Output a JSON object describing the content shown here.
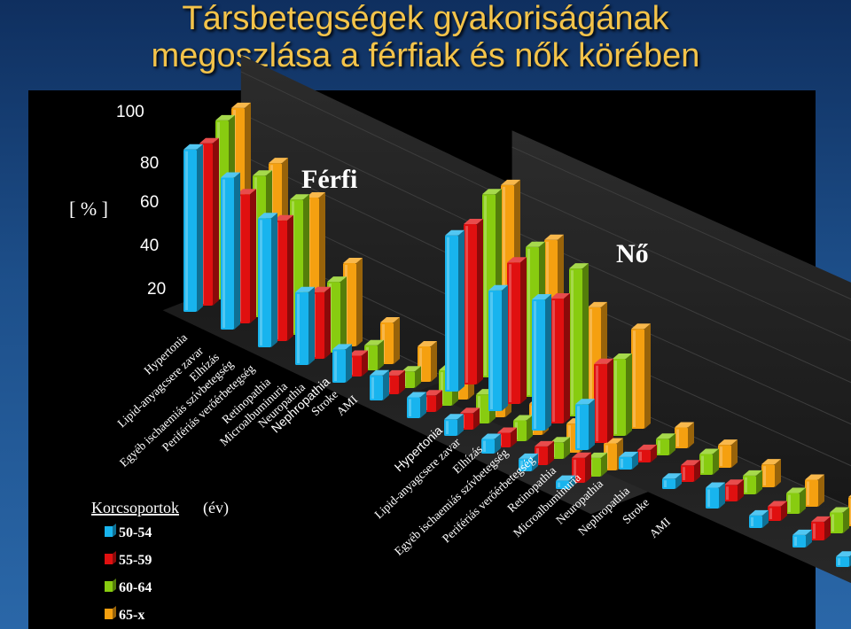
{
  "slide": {
    "title_line1": "Társbetegségek gyakoriságának",
    "title_line2": "megoszlása a férfiak és nők körében"
  },
  "chart_data": {
    "type": "bar",
    "style": "3d-grouped",
    "y_unit_label": "[ % ]",
    "y_ticks": [
      "100",
      "80",
      "60",
      "40",
      "20"
    ],
    "ylim": [
      0,
      100
    ],
    "groups": [
      {
        "name": "Férfi",
        "label_font": "serif"
      },
      {
        "name": "Nő",
        "label_font": "serif"
      }
    ],
    "categories": [
      "Hypertonia",
      "Lipid-anyagcsere zavar",
      "Elhízás",
      "Egyéb ischaemiás szívbetegség",
      "Perifériás verőérbetegség",
      "Retinopathia",
      "Microalbuminuria",
      "Neuropathia",
      "Nephropathia",
      "Stroke",
      "AMI"
    ],
    "legend_title": "Korcsoportok",
    "legend_subtitle": "(év)",
    "series_colors": [
      "#18b4ee",
      "#e01010",
      "#88cc10",
      "#f5a010"
    ],
    "series": [
      {
        "name": "50-54",
        "Férfi": [
          78,
          73,
          62,
          35,
          16,
          12,
          10,
          8,
          7,
          6,
          4
        ],
        "Nő": [
          75,
          58,
          63,
          22,
          6,
          5,
          10,
          6,
          6,
          5,
          3
        ]
      },
      {
        "name": "55-59",
        "Férfi": [
          78,
          62,
          58,
          32,
          10,
          9,
          8,
          8,
          7,
          9,
          12
        ],
        "Nő": [
          77,
          68,
          60,
          38,
          6,
          8,
          8,
          7,
          9,
          12,
          8
        ]
      },
      {
        "name": "60-64",
        "Férfi": [
          86,
          68,
          65,
          34,
          12,
          8,
          17,
          14,
          10,
          8,
          9
        ],
        "Nő": [
          88,
          72,
          71,
          37,
          8,
          10,
          9,
          10,
          10,
          10,
          6
        ]
      },
      {
        "name": "65-x",
        "Férfi": [
          89,
          71,
          63,
          40,
          20,
          17,
          20,
          17,
          15,
          14,
          13
        ],
        "Nő": [
          89,
          72,
          49,
          48,
          10,
          11,
          11,
          13,
          14,
          15,
          6
        ]
      }
    ]
  }
}
